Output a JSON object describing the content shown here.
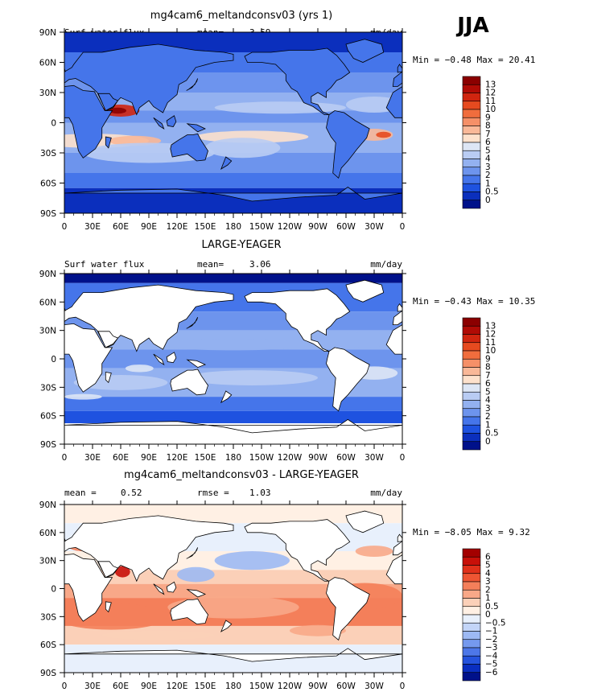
{
  "season": "JJA",
  "panels": [
    {
      "title": "mg4cam6_meltandconsv03 (yrs 1)",
      "left_label": "Surf water flux",
      "mid_label": "mean=",
      "mid_value": "3.59",
      "units": "mm/day",
      "min_max": "Min =  −0.48  Max =  20.41",
      "colorbar_labels": [
        "13",
        "12",
        "11",
        "10",
        "9",
        "8",
        "7",
        "6",
        "5",
        "4",
        "3",
        "2",
        "1",
        "0.5",
        "0"
      ],
      "colorbar_colors": [
        "#8b0000",
        "#b00b05",
        "#d0250f",
        "#e64a1f",
        "#f06d3d",
        "#f59068",
        "#f9b898",
        "#fde1cc",
        "#dde6f5",
        "#b9ccf3",
        "#93b1f0",
        "#6d94ed",
        "#4575ea",
        "#1e52e0",
        "#0b2fbd",
        "#00118a"
      ]
    },
    {
      "title": "LARGE-YEAGER",
      "left_label": "Surf water flux",
      "mid_label": "mean=",
      "mid_value": "3.06",
      "units": "mm/day",
      "min_max": "Min =  −0.43  Max =  10.35",
      "colorbar_labels": [
        "13",
        "12",
        "11",
        "10",
        "9",
        "8",
        "7",
        "6",
        "5",
        "4",
        "3",
        "2",
        "1",
        "0.5",
        "0"
      ],
      "colorbar_colors": [
        "#8b0000",
        "#b00b05",
        "#d0250f",
        "#e64a1f",
        "#f06d3d",
        "#f59068",
        "#f9b898",
        "#fde1cc",
        "#dde6f5",
        "#b9ccf3",
        "#93b1f0",
        "#6d94ed",
        "#4575ea",
        "#1e52e0",
        "#0b2fbd",
        "#00118a"
      ]
    },
    {
      "title": "mg4cam6_meltandconsv03 - LARGE-YEAGER",
      "left_label": "mean =",
      "left_value": "0.52",
      "mid_label": "rmse =",
      "mid_value": "1.03",
      "units": "mm/day",
      "min_max": "Min =  −8.05  Max =   9.32",
      "colorbar_labels": [
        "6",
        "5",
        "4",
        "3",
        "2",
        "1",
        "0.5",
        "0",
        "−0.5",
        "−1",
        "−2",
        "−3",
        "−4",
        "−5",
        "−6"
      ],
      "colorbar_colors": [
        "#a30000",
        "#c81009",
        "#e0301a",
        "#ee5533",
        "#f47f5a",
        "#f8a888",
        "#fbd0b8",
        "#fff0e4",
        "#e8f0fc",
        "#c3d5f8",
        "#9db9f3",
        "#7599ee",
        "#4d77e8",
        "#2553dd",
        "#0a2ec0",
        "#00118a"
      ]
    }
  ],
  "chart_data": {
    "type": "heatmap",
    "description_units": "mm/day",
    "x_tick_labels": [
      "0",
      "30E",
      "60E",
      "90E",
      "120E",
      "150E",
      "180",
      "150W",
      "120W",
      "90W",
      "60W",
      "30W",
      "0"
    ],
    "y_tick_labels": [
      "90N",
      "60N",
      "30N",
      "0",
      "30S",
      "60S",
      "90S"
    ],
    "xlim": [
      0,
      360
    ],
    "ylim": [
      -90,
      90
    ],
    "panel_means": [
      3.59,
      3.06,
      0.52
    ],
    "panel_min": [
      -0.48,
      -0.43,
      -8.05
    ],
    "panel_max": [
      20.41,
      10.35,
      9.32
    ],
    "diff_rmse": 1.03
  }
}
